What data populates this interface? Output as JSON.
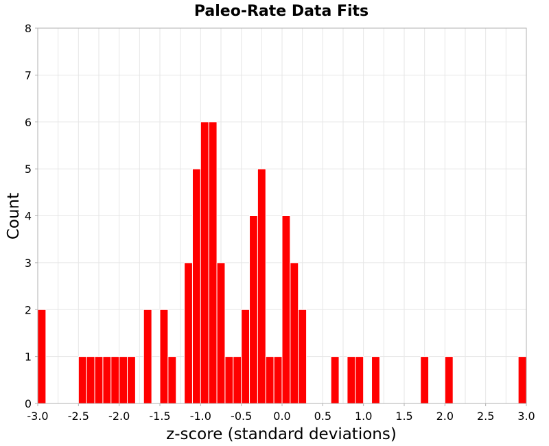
{
  "chart_data": {
    "type": "bar",
    "title": "Paleo-Rate Data Fits",
    "xlabel": "z-score (standard deviations)",
    "ylabel": "Count",
    "xlim": [
      -3.0,
      3.0
    ],
    "ylim": [
      0,
      8
    ],
    "bin_width": 0.1,
    "x_ticks": [
      "-3.0",
      "-2.5",
      "-2.0",
      "-1.5",
      "-1.0",
      "-0.5",
      "0.0",
      "0.5",
      "1.0",
      "1.5",
      "2.0",
      "2.5",
      "3.0"
    ],
    "y_ticks": [
      "0",
      "1",
      "2",
      "3",
      "4",
      "5",
      "6",
      "7",
      "8"
    ],
    "grid": true,
    "legend": "none",
    "bar_color": "#ff0000",
    "bins": [
      {
        "x": -2.95,
        "count": 2
      },
      {
        "x": -2.45,
        "count": 1
      },
      {
        "x": -2.35,
        "count": 1
      },
      {
        "x": -2.25,
        "count": 1
      },
      {
        "x": -2.15,
        "count": 1
      },
      {
        "x": -2.05,
        "count": 1
      },
      {
        "x": -1.95,
        "count": 1
      },
      {
        "x": -1.85,
        "count": 1
      },
      {
        "x": -1.65,
        "count": 2
      },
      {
        "x": -1.45,
        "count": 2
      },
      {
        "x": -1.35,
        "count": 1
      },
      {
        "x": -1.15,
        "count": 3
      },
      {
        "x": -1.05,
        "count": 5
      },
      {
        "x": -0.95,
        "count": 6
      },
      {
        "x": -0.85,
        "count": 6
      },
      {
        "x": -0.75,
        "count": 3
      },
      {
        "x": -0.65,
        "count": 1
      },
      {
        "x": -0.55,
        "count": 1
      },
      {
        "x": -0.45,
        "count": 2
      },
      {
        "x": -0.35,
        "count": 4
      },
      {
        "x": -0.25,
        "count": 5
      },
      {
        "x": -0.15,
        "count": 1
      },
      {
        "x": -0.05,
        "count": 1
      },
      {
        "x": 0.05,
        "count": 4
      },
      {
        "x": 0.15,
        "count": 3
      },
      {
        "x": 0.25,
        "count": 2
      },
      {
        "x": 0.65,
        "count": 1
      },
      {
        "x": 0.85,
        "count": 1
      },
      {
        "x": 0.95,
        "count": 1
      },
      {
        "x": 1.15,
        "count": 1
      },
      {
        "x": 1.75,
        "count": 1
      },
      {
        "x": 2.05,
        "count": 1
      },
      {
        "x": 2.95,
        "count": 1
      }
    ]
  }
}
